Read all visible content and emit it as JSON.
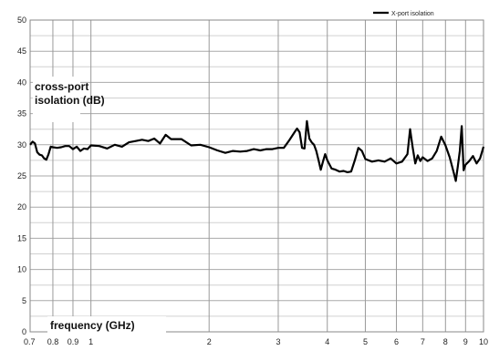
{
  "chart_data": {
    "type": "line",
    "title": "",
    "xlabel": "frequency (GHz)",
    "ylabel": "cross-port isolation (dB)",
    "ylabel_lines": [
      "cross-port",
      "isolation (dB)"
    ],
    "xscale": "log",
    "xlim": [
      0.7,
      10
    ],
    "ylim": [
      0,
      50
    ],
    "grid": true,
    "legend_position": "top-right",
    "x_ticks": [
      0.7,
      0.8,
      0.9,
      1,
      2,
      3,
      4,
      5,
      6,
      7,
      8,
      9,
      10
    ],
    "x_tick_labels": [
      "0.7",
      "0.8",
      "0.9",
      "1",
      "2",
      "3",
      "4",
      "5",
      "6",
      "7",
      "8",
      "9",
      "10"
    ],
    "y_ticks": [
      0,
      5,
      10,
      15,
      20,
      25,
      30,
      35,
      40,
      45,
      50
    ],
    "y_tick_labels": [
      "0",
      "5",
      "10",
      "15",
      "20",
      "25",
      "30",
      "35",
      "40",
      "45",
      "50"
    ],
    "series": [
      {
        "name": "X-port isolation",
        "color": "#000000",
        "x": [
          0.7,
          0.71,
          0.72,
          0.73,
          0.74,
          0.75,
          0.76,
          0.77,
          0.78,
          0.79,
          0.8,
          0.82,
          0.84,
          0.86,
          0.88,
          0.9,
          0.92,
          0.94,
          0.96,
          0.98,
          1.0,
          1.05,
          1.1,
          1.15,
          1.2,
          1.25,
          1.3,
          1.35,
          1.4,
          1.45,
          1.5,
          1.55,
          1.6,
          1.7,
          1.8,
          1.9,
          2.0,
          2.1,
          2.2,
          2.3,
          2.4,
          2.5,
          2.6,
          2.7,
          2.8,
          2.9,
          3.0,
          3.1,
          3.2,
          3.3,
          3.35,
          3.4,
          3.45,
          3.5,
          3.55,
          3.6,
          3.65,
          3.7,
          3.75,
          3.8,
          3.85,
          3.9,
          3.95,
          4.0,
          4.1,
          4.2,
          4.3,
          4.4,
          4.5,
          4.6,
          4.7,
          4.8,
          4.9,
          5.0,
          5.2,
          5.4,
          5.6,
          5.8,
          6.0,
          6.2,
          6.4,
          6.5,
          6.6,
          6.7,
          6.8,
          6.9,
          7.0,
          7.2,
          7.4,
          7.6,
          7.8,
          8.0,
          8.2,
          8.4,
          8.5,
          8.6,
          8.7,
          8.8,
          8.9,
          9.0,
          9.2,
          9.4,
          9.6,
          9.8,
          10.0
        ],
        "y": [
          30.0,
          30.5,
          30.2,
          28.8,
          28.4,
          28.3,
          27.8,
          27.6,
          28.5,
          29.7,
          29.6,
          29.5,
          29.6,
          29.8,
          29.8,
          29.3,
          29.7,
          29.0,
          29.4,
          29.3,
          29.9,
          29.8,
          29.4,
          30.0,
          29.7,
          30.4,
          30.6,
          30.8,
          30.6,
          31.0,
          30.2,
          31.6,
          30.9,
          30.9,
          29.9,
          30.0,
          29.6,
          29.1,
          28.7,
          29.0,
          28.9,
          29.0,
          29.3,
          29.1,
          29.3,
          29.3,
          29.5,
          29.5,
          30.7,
          32.0,
          32.6,
          32.0,
          29.5,
          29.4,
          33.8,
          31.0,
          30.4,
          30.0,
          29.0,
          27.5,
          26.0,
          27.3,
          28.5,
          27.5,
          26.2,
          26.0,
          25.7,
          25.8,
          25.6,
          25.7,
          27.5,
          29.5,
          29.0,
          27.7,
          27.3,
          27.5,
          27.3,
          27.8,
          27.0,
          27.3,
          28.5,
          32.5,
          29.6,
          27.0,
          28.3,
          27.4,
          28.0,
          27.4,
          27.8,
          29.0,
          31.3,
          29.9,
          28.0,
          25.5,
          24.2,
          26.5,
          29.0,
          33.0,
          25.9,
          26.8,
          27.4,
          28.2,
          27.0,
          27.8,
          29.7
        ]
      }
    ]
  }
}
